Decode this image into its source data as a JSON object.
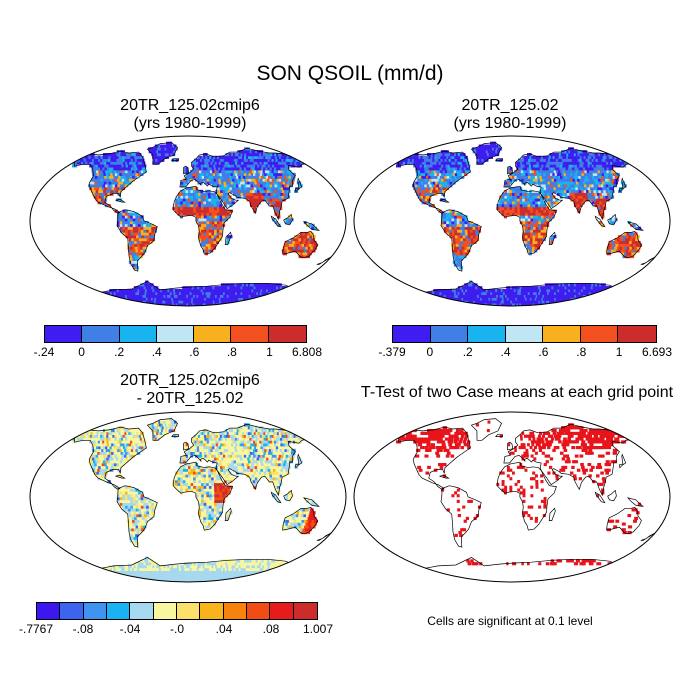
{
  "title": "SON QSOIL (mm/d)",
  "panels": [
    {
      "title_line1": "20TR_125.02cmip6",
      "title_line2": "(yrs 1980-1999)"
    },
    {
      "title_line1": "20TR_125.02",
      "title_line2": "(yrs 1980-1999)"
    },
    {
      "title_line1": "20TR_125.02cmip6",
      "title_line2": "- 20TR_125.02"
    },
    {
      "title_line1": "T-Test of two Case means at each grid point",
      "title_line2": ""
    }
  ],
  "colorbars": [
    {
      "labels": [
        "-.24",
        "0",
        ".2",
        ".4",
        ".6",
        ".8",
        "1",
        "6.808"
      ],
      "colors": [
        "#3f1cf0",
        "#3f7fe6",
        "#19b3f0",
        "#bfe6f2",
        "#f7b11e",
        "#f2501f",
        "#cc2c2c"
      ]
    },
    {
      "labels": [
        "-.379",
        "0",
        ".2",
        ".4",
        ".6",
        ".8",
        "1",
        "6.693"
      ],
      "colors": [
        "#3f1cf0",
        "#3f7fe6",
        "#19b3f0",
        "#bfe6f2",
        "#f7b11e",
        "#f2501f",
        "#cc2c2c"
      ]
    },
    {
      "labels": [
        "-.7767",
        "-.08",
        "-.04",
        "-.0",
        ".04",
        ".08",
        "1.007"
      ],
      "colors": [
        "#3e16f0",
        "#3c64ef",
        "#3f93ee",
        "#19b3f5",
        "#a6d9f0",
        "#f8f7a0",
        "#fbe06b",
        "#f9b41b",
        "#f7830f",
        "#f24c16",
        "#e81b1b",
        "#cc2c2c"
      ]
    }
  ],
  "note": "Cells are significant at 0.1 level"
}
